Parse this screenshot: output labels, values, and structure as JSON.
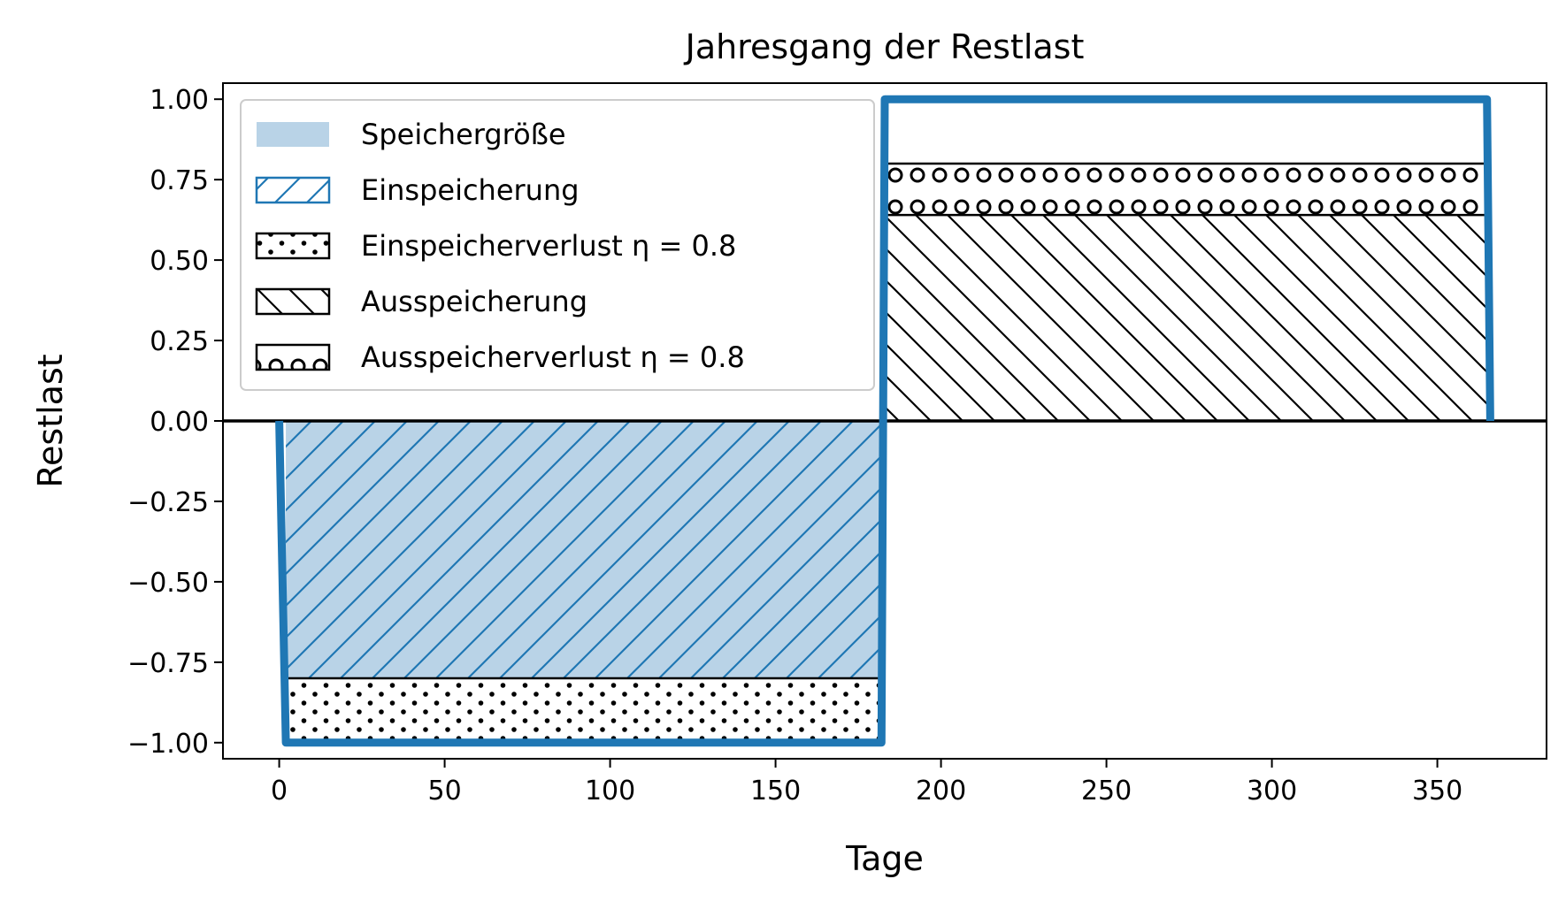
{
  "chart_data": {
    "type": "area",
    "title": "Jahresgang der Restlast",
    "xlabel": "Tage",
    "ylabel": "Restlast",
    "xlim": [
      -17,
      383
    ],
    "ylim": [
      -1.05,
      1.05
    ],
    "x_ticks": [
      0,
      50,
      100,
      150,
      200,
      250,
      300,
      350
    ],
    "y_ticks": [
      1.0,
      0.75,
      0.5,
      0.25,
      0.0,
      -0.25,
      -0.5,
      -0.75,
      -1.0
    ],
    "y_tick_labels": [
      "1.00",
      "0.75",
      "0.50",
      "0.25",
      "0.00",
      "−0.25",
      "−0.50",
      "−0.75",
      "−1.00"
    ],
    "x_tick_labels": [
      "0",
      "50",
      "100",
      "150",
      "200",
      "250",
      "300",
      "350"
    ],
    "series": [
      {
        "name": "Restlast",
        "x": [
          0,
          2,
          182,
          183,
          365,
          366
        ],
        "y": [
          0,
          -1,
          -1,
          1,
          1,
          0
        ],
        "color": "#1f77b4"
      }
    ],
    "regions": [
      {
        "name": "Speichergröße",
        "x": [
          2,
          182
        ],
        "y_low": -0.8,
        "y_high": 0,
        "fill": "#b9d3e7"
      },
      {
        "name": "Einspeicherung",
        "x": [
          2,
          182
        ],
        "y_low": -0.8,
        "y_high": 0,
        "hatch": "/",
        "color": "#1f77b4"
      },
      {
        "name": "Einspeicherverlust η = 0.8",
        "x": [
          2,
          182
        ],
        "y_low": -1.0,
        "y_high": -0.8,
        "hatch": ".",
        "color": "#000000"
      },
      {
        "name": "Ausspeicherung",
        "x": [
          183,
          365
        ],
        "y_low": 0,
        "y_high": 0.64,
        "hatch": "\\",
        "color": "#000000"
      },
      {
        "name": "Ausspeicherverlust η = 0.8",
        "x": [
          183,
          365
        ],
        "y_low": 0.64,
        "y_high": 0.8,
        "hatch": "o",
        "color": "#000000"
      }
    ],
    "zero_line": 0,
    "legend": {
      "position": "top-left",
      "entries": [
        {
          "label": "Speichergröße",
          "style": "fill"
        },
        {
          "label": "Einspeicherung",
          "style": "hatch-slash"
        },
        {
          "label": "Einspeicherverlust η = 0.8",
          "style": "hatch-dots"
        },
        {
          "label": "Ausspeicherung",
          "style": "hatch-backslash"
        },
        {
          "label": "Ausspeicherverlust η = 0.8",
          "style": "hatch-circles"
        }
      ]
    }
  }
}
